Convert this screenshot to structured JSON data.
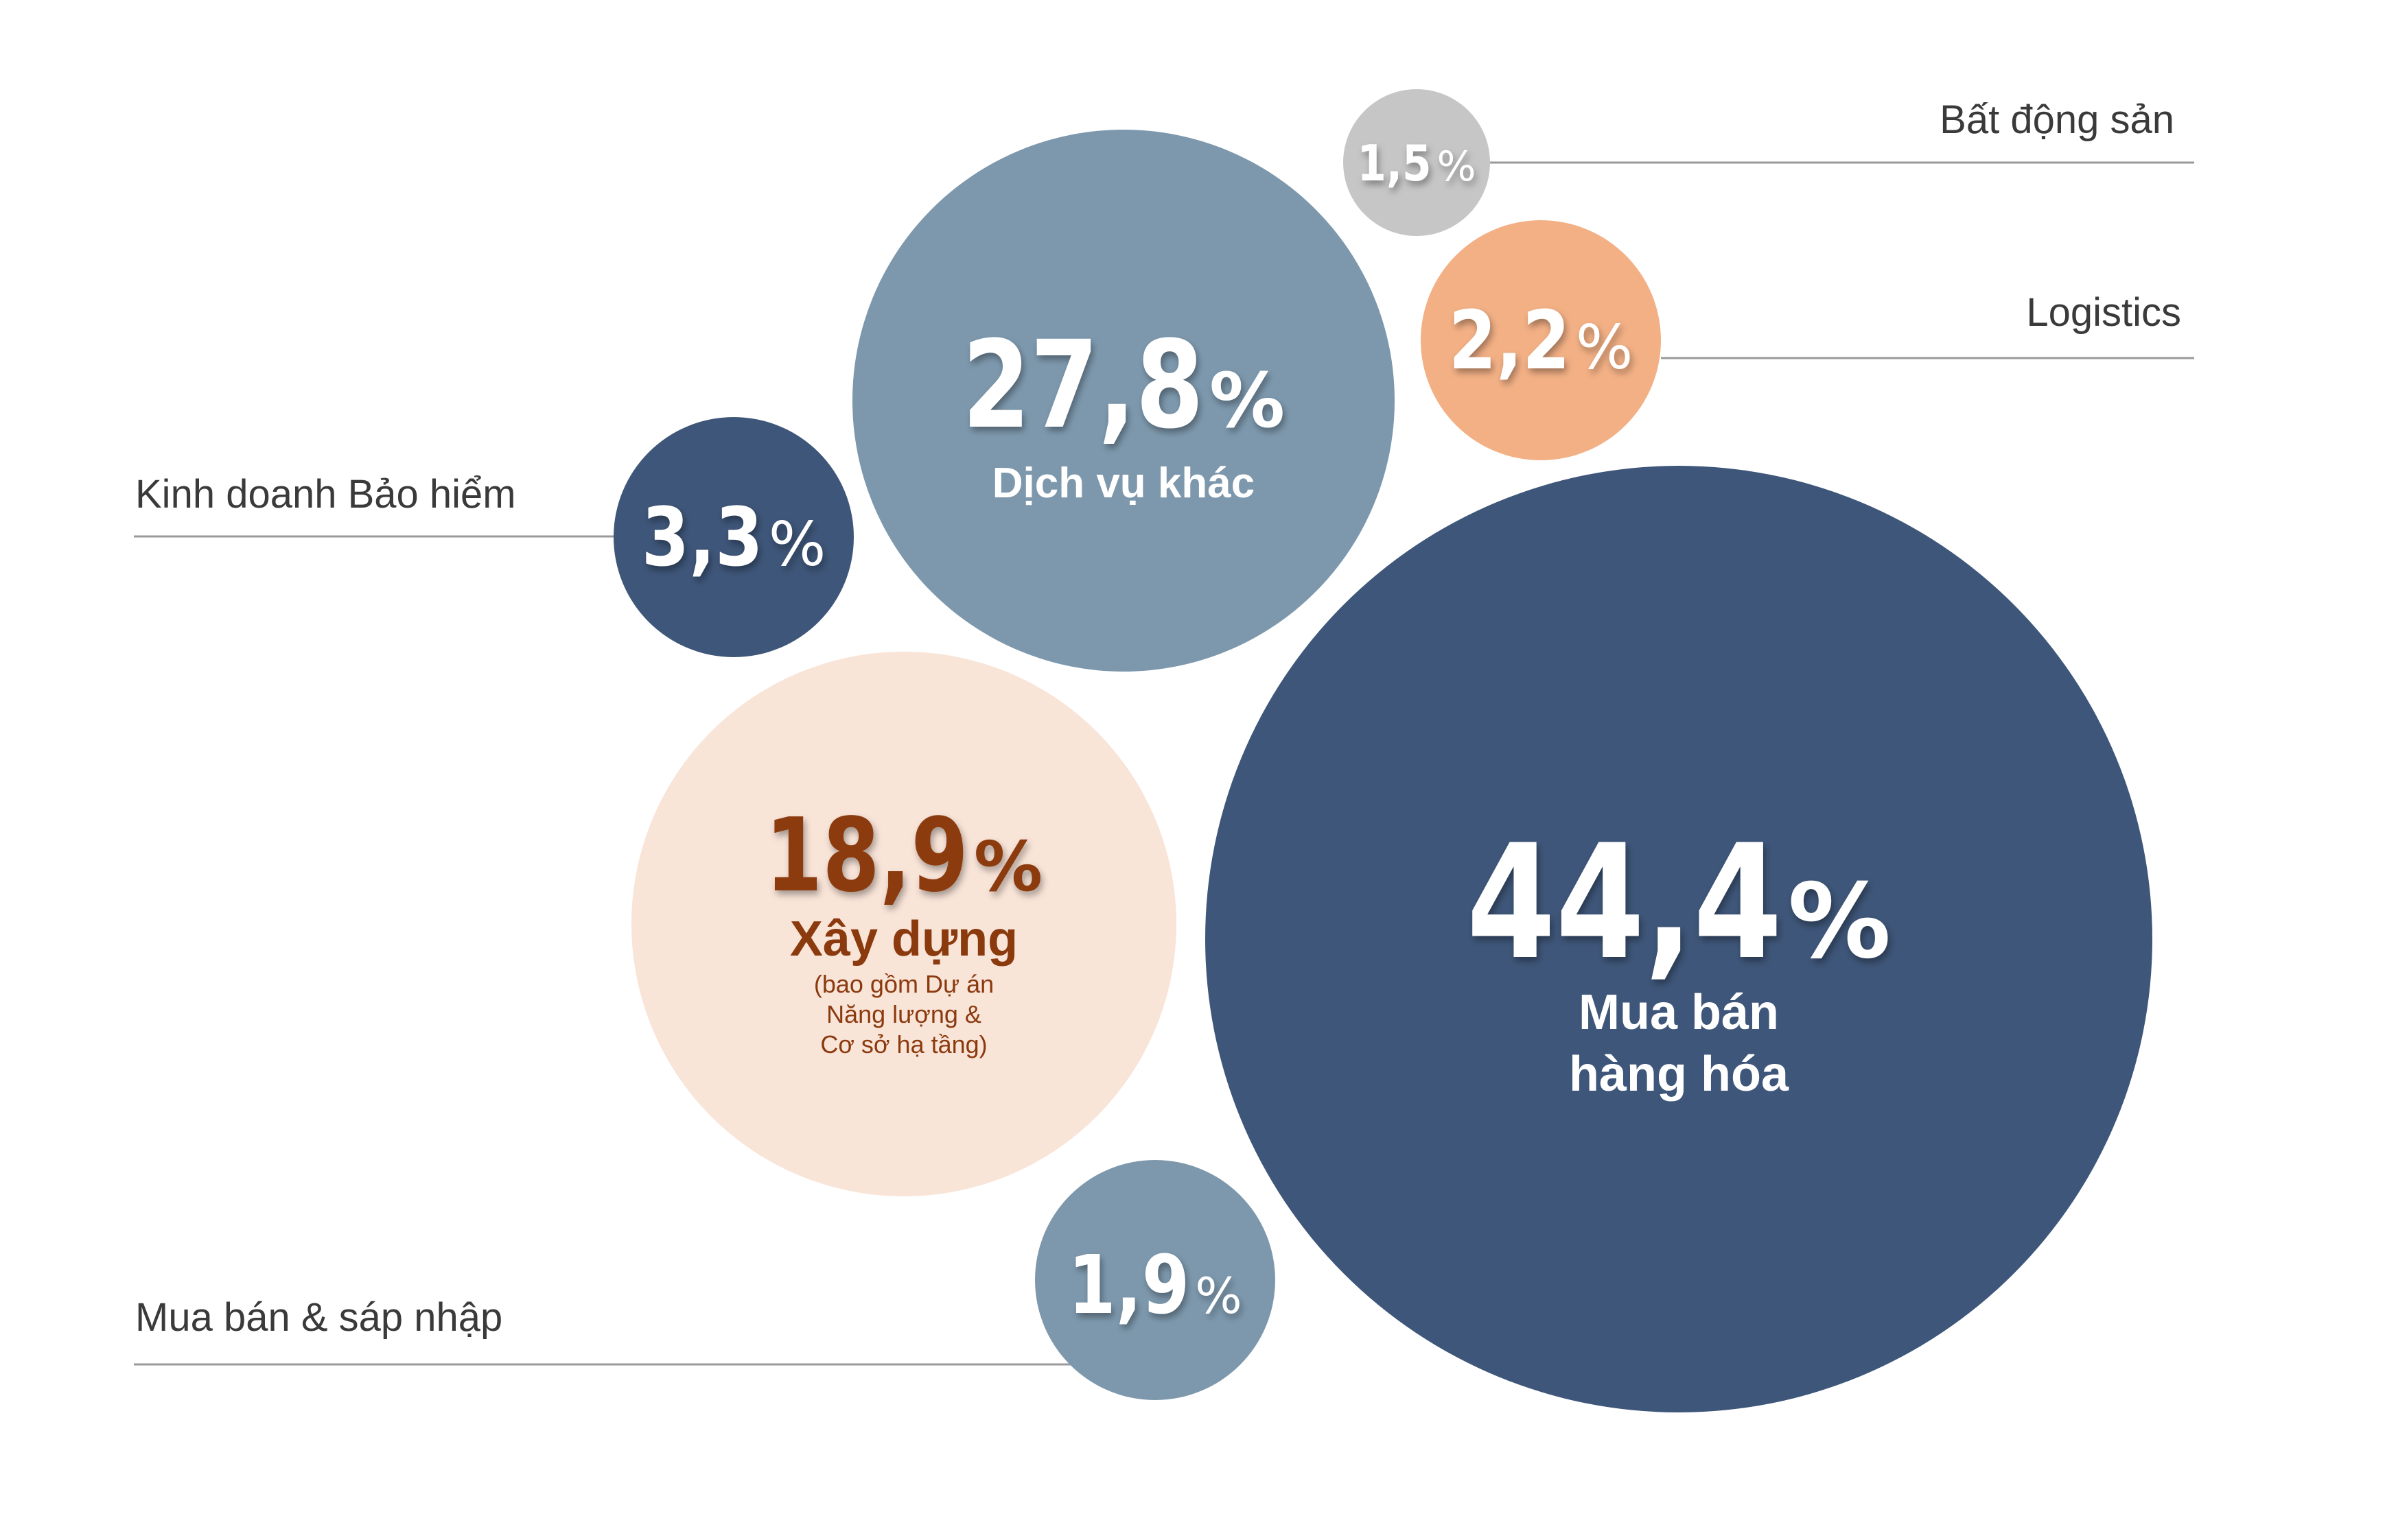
{
  "chart_data": {
    "type": "bubble",
    "unit": "%",
    "colors": {
      "navy": "#3e5679",
      "steel": "#7d98ad",
      "gray": "#c6c6c6",
      "orange": "#f3b085",
      "peach": "#f9e4d8",
      "brown": "#8b3a0e",
      "line": "#9a9a9a",
      "text": "#3a3a3a"
    },
    "bubbles": [
      {
        "id": "mua-ban-hang-hoa",
        "value": "44,4",
        "label_lines": [
          "Mua bán",
          "hàng hóa"
        ],
        "color": "navy",
        "text_color": "#ffffff"
      },
      {
        "id": "dich-vu-khac",
        "value": "27,8",
        "label_lines": [
          "Dịch vụ khác"
        ],
        "color": "steel",
        "text_color": "#ffffff"
      },
      {
        "id": "xay-dung",
        "value": "18,9",
        "label_lines": [
          "Xây dựng"
        ],
        "note_lines": [
          "(bao gồm Dự án",
          "Năng lượng &",
          "Cơ sở hạ tầng)"
        ],
        "color": "peach",
        "text_color": "#8b3a0e"
      },
      {
        "id": "kinh-doanh-bao-hiem",
        "value": "3,3",
        "callout": "Kinh doanh Bảo hiểm",
        "color": "navy",
        "text_color": "#ffffff"
      },
      {
        "id": "logistics",
        "value": "2,2",
        "callout": "Logistics",
        "color": "orange",
        "text_color": "#ffffff"
      },
      {
        "id": "mua-ban-sap-nhap",
        "value": "1,9",
        "callout": "Mua bán & sáp nhập",
        "color": "steel",
        "text_color": "#ffffff"
      },
      {
        "id": "bat-dong-san",
        "value": "1,5",
        "callout": "Bất động sản",
        "color": "gray",
        "text_color": "#ffffff"
      }
    ]
  }
}
